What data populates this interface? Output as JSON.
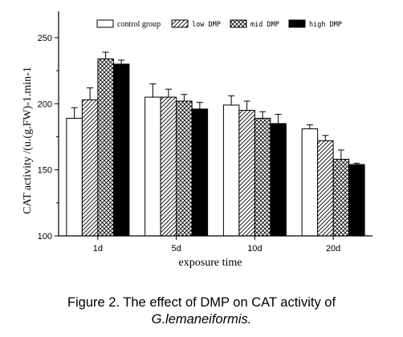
{
  "chart_data": {
    "type": "bar",
    "categories": [
      "1d",
      "5d",
      "10d",
      "20d"
    ],
    "series": [
      {
        "name": "control group",
        "values": [
          189,
          205,
          199,
          181
        ],
        "errors": [
          8,
          10,
          7,
          3
        ],
        "fill": "white"
      },
      {
        "name": "low DMP",
        "values": [
          203,
          205,
          195,
          172
        ],
        "errors": [
          9,
          6,
          7,
          4
        ],
        "fill": "hatch"
      },
      {
        "name": "mid DMP",
        "values": [
          234,
          202,
          189,
          158
        ],
        "errors": [
          5,
          5,
          5,
          7
        ],
        "fill": "crosshatch"
      },
      {
        "name": "high DMP",
        "values": [
          230,
          196,
          185,
          154
        ],
        "errors": [
          3,
          5,
          7,
          1
        ],
        "fill": "black"
      }
    ],
    "xlabel": "exposure time",
    "ylabel": "CAT activity /(u.(g.FW)-1.min-1",
    "ylim": [
      100,
      270
    ],
    "yticks": [
      "100",
      "150",
      "200",
      "250"
    ],
    "legend_position": "top",
    "grid": false
  },
  "caption": {
    "line1": "Figure 2. The effect of DMP on CAT activity of",
    "line2": "G.lemaneiformis."
  }
}
